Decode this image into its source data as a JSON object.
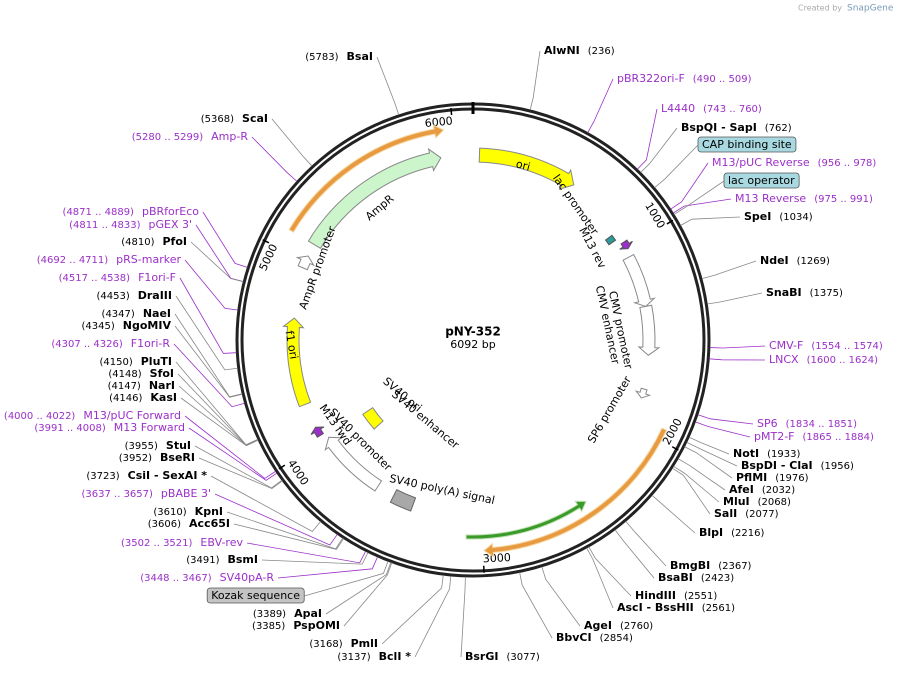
{
  "header": {
    "credit": "Created by",
    "brand": "SnapGene"
  },
  "plasmid": {
    "name": "pNY-352",
    "length": "6092 bp"
  },
  "ticks": [
    "1000",
    "2000",
    "3000",
    "4000",
    "5000",
    "6000"
  ],
  "right_labels": [
    {
      "name": "AlwNI",
      "position": "(236)",
      "color": "#000000"
    },
    {
      "name": "pBR322ori-F",
      "position": "(490 .. 509)",
      "color": "#9b2fc9"
    },
    {
      "name": "L4440",
      "position": "(743 .. 760)",
      "color": "#9b2fc9"
    },
    {
      "name": "BspQI - SapI",
      "position": "(762)",
      "color": "#000000"
    },
    {
      "name": "M13/pUC Reverse",
      "position": "(956 .. 978)",
      "color": "#9b2fc9"
    },
    {
      "name": "M13 Reverse",
      "position": "(975 .. 991)",
      "color": "#9b2fc9"
    },
    {
      "name": "SpeI",
      "position": "(1034)",
      "color": "#000000"
    },
    {
      "name": "NdeI",
      "position": "(1269)",
      "color": "#000000"
    },
    {
      "name": "SnaBI",
      "position": "(1375)",
      "color": "#000000"
    },
    {
      "name": "CMV-F",
      "position": "(1554 .. 1574)",
      "color": "#9b2fc9"
    },
    {
      "name": "LNCX",
      "position": "(1600 .. 1624)",
      "color": "#9b2fc9"
    },
    {
      "name": "SP6",
      "position": "(1834 .. 1851)",
      "color": "#9b2fc9"
    },
    {
      "name": "pMT2-F",
      "position": "(1865 .. 1884)",
      "color": "#9b2fc9"
    },
    {
      "name": "NotI",
      "position": "(1933)",
      "color": "#000000"
    },
    {
      "name": "BspDI - ClaI",
      "position": "(1956)",
      "color": "#000000"
    },
    {
      "name": "PflMI",
      "position": "(1976)",
      "color": "#000000"
    },
    {
      "name": "AfeI",
      "position": "(2032)",
      "color": "#000000"
    },
    {
      "name": "MluI",
      "position": "(2068)",
      "color": "#000000"
    },
    {
      "name": "SalI",
      "position": "(2077)",
      "color": "#000000"
    },
    {
      "name": "BlpI",
      "position": "(2216)",
      "color": "#000000"
    },
    {
      "name": "BmgBI",
      "position": "(2367)",
      "color": "#000000"
    },
    {
      "name": "BsaBI",
      "position": "(2423)",
      "color": "#000000"
    },
    {
      "name": "HindIII",
      "position": "(2551)",
      "color": "#000000"
    },
    {
      "name": "AscI - BssHII",
      "position": "(2561)",
      "color": "#000000"
    },
    {
      "name": "AgeI",
      "position": "(2760)",
      "color": "#000000"
    },
    {
      "name": "BbvCI",
      "position": "(2854)",
      "color": "#000000"
    },
    {
      "name": "BsrGI",
      "position": "(3077)",
      "color": "#000000"
    }
  ],
  "left_labels": [
    {
      "name": "BsaI",
      "position": "(5783)",
      "color": "#000000"
    },
    {
      "name": "ScaI",
      "position": "(5368)",
      "color": "#000000"
    },
    {
      "name": "Amp-R",
      "position": "(5280 .. 5299)",
      "color": "#9b2fc9"
    },
    {
      "name": "pBRforEco",
      "position": "(4871 .. 4889)",
      "color": "#9b2fc9"
    },
    {
      "name": "pGEX 3'",
      "position": "(4811 .. 4833)",
      "color": "#9b2fc9"
    },
    {
      "name": "PfoI",
      "position": "(4810)",
      "color": "#000000"
    },
    {
      "name": "pRS-marker",
      "position": "(4692 .. 4711)",
      "color": "#9b2fc9"
    },
    {
      "name": "F1ori-F",
      "position": "(4517 .. 4538)",
      "color": "#9b2fc9"
    },
    {
      "name": "DraIII",
      "position": "(4453)",
      "color": "#000000"
    },
    {
      "name": "NaeI",
      "position": "(4347)",
      "color": "#000000"
    },
    {
      "name": "NgoMIV",
      "position": "(4345)",
      "color": "#000000"
    },
    {
      "name": "F1ori-R",
      "position": "(4307 .. 4326)",
      "color": "#9b2fc9"
    },
    {
      "name": "PluTI",
      "position": "(4150)",
      "color": "#000000"
    },
    {
      "name": "SfoI",
      "position": "(4148)",
      "color": "#000000"
    },
    {
      "name": "NarI",
      "position": "(4147)",
      "color": "#000000"
    },
    {
      "name": "KasI",
      "position": "(4146)",
      "color": "#000000"
    },
    {
      "name": "M13/pUC Forward",
      "position": "(4000 .. 4022)",
      "color": "#9b2fc9"
    },
    {
      "name": "M13 Forward",
      "position": "(3991 .. 4008)",
      "color": "#9b2fc9"
    },
    {
      "name": "StuI",
      "position": "(3955)",
      "color": "#000000"
    },
    {
      "name": "BseRI",
      "position": "(3952)",
      "color": "#000000"
    },
    {
      "name": "CsiI - SexAI *",
      "position": "(3723)",
      "color": "#000000"
    },
    {
      "name": "pBABE 3'",
      "position": "(3637 .. 3657)",
      "color": "#9b2fc9"
    },
    {
      "name": "KpnI",
      "position": "(3610)",
      "color": "#000000"
    },
    {
      "name": "Acc65I",
      "position": "(3606)",
      "color": "#000000"
    },
    {
      "name": "EBV-rev",
      "position": "(3502 .. 3521)",
      "color": "#9b2fc9"
    },
    {
      "name": "BsmI",
      "position": "(3491)",
      "color": "#000000"
    },
    {
      "name": "SV40pA-R",
      "position": "(3448 .. 3467)",
      "color": "#9b2fc9"
    },
    {
      "name": "ApaI",
      "position": "(3389)",
      "color": "#000000"
    },
    {
      "name": "PspOMI",
      "position": "(3385)",
      "color": "#000000"
    },
    {
      "name": "PmlI",
      "position": "(3168)",
      "color": "#000000"
    },
    {
      "name": "BclI *",
      "position": "(3137)",
      "color": "#000000"
    }
  ],
  "boxed_features": [
    {
      "name": "CAP binding site",
      "color": "#a8d8e0"
    },
    {
      "name": "lac operator",
      "color": "#a8d8e0"
    },
    {
      "name": "Kozak sequence",
      "color": "#c4c4c4"
    }
  ],
  "features": [
    "ori",
    "lac promoter",
    "M13 rev",
    "CMV promoter",
    "CMV enhancer",
    "SP6 promoter",
    "SV40 poly(A) signal",
    "SV40 promoter",
    "M13 fwd",
    "SV40 ori",
    "SV40 enhancer",
    "f1 ori",
    "AmpR promoter",
    "AmpR"
  ]
}
